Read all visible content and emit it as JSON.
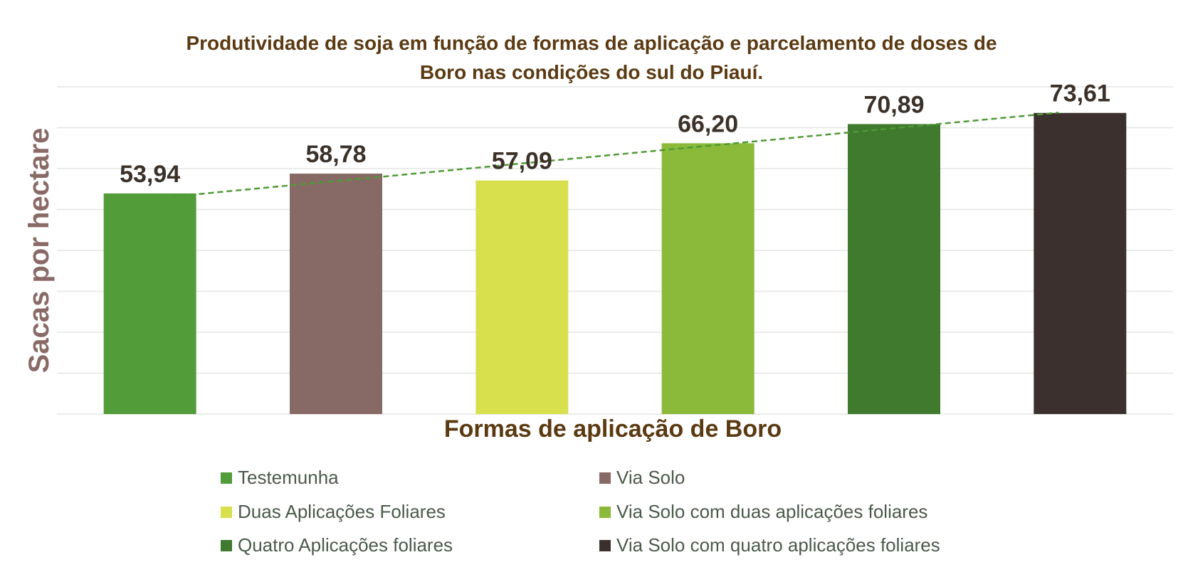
{
  "chart_data": {
    "type": "bar",
    "title": "Produtividade de soja em função de formas de aplicação e parcelamento de doses de Boro nas condições do sul do Piauí.",
    "title_lines": [
      "Produtividade de soja em função de formas de aplicação e parcelamento de doses de",
      "Boro nas condições do sul do Piauí."
    ],
    "xlabel": "Formas de aplicação de Boro",
    "ylabel": "Sacas  por hectare",
    "categories": [
      "Testemunha",
      "Via Solo",
      "Duas Aplicações Foliares",
      "Via Solo com duas aplicações foliares",
      "Quatro Aplicações foliares",
      "Via Solo com quatro aplicações foliares"
    ],
    "values": [
      53.94,
      58.78,
      57.09,
      66.2,
      70.89,
      73.61
    ],
    "value_labels": [
      "53,94",
      "58,78",
      "57,09",
      "66,20",
      "70,89",
      "73,61"
    ],
    "colors": [
      "#529c3a",
      "#876a66",
      "#d8e04d",
      "#8bb93a",
      "#3f7a2e",
      "#3b302e"
    ],
    "ylim": [
      0,
      80
    ],
    "grid": true,
    "y_tick_labels_visible": false,
    "trendline": {
      "type": "linear",
      "style": "dashed",
      "color": "#4f9a35"
    },
    "legend": {
      "placement": "bottom",
      "columns": 2
    }
  }
}
